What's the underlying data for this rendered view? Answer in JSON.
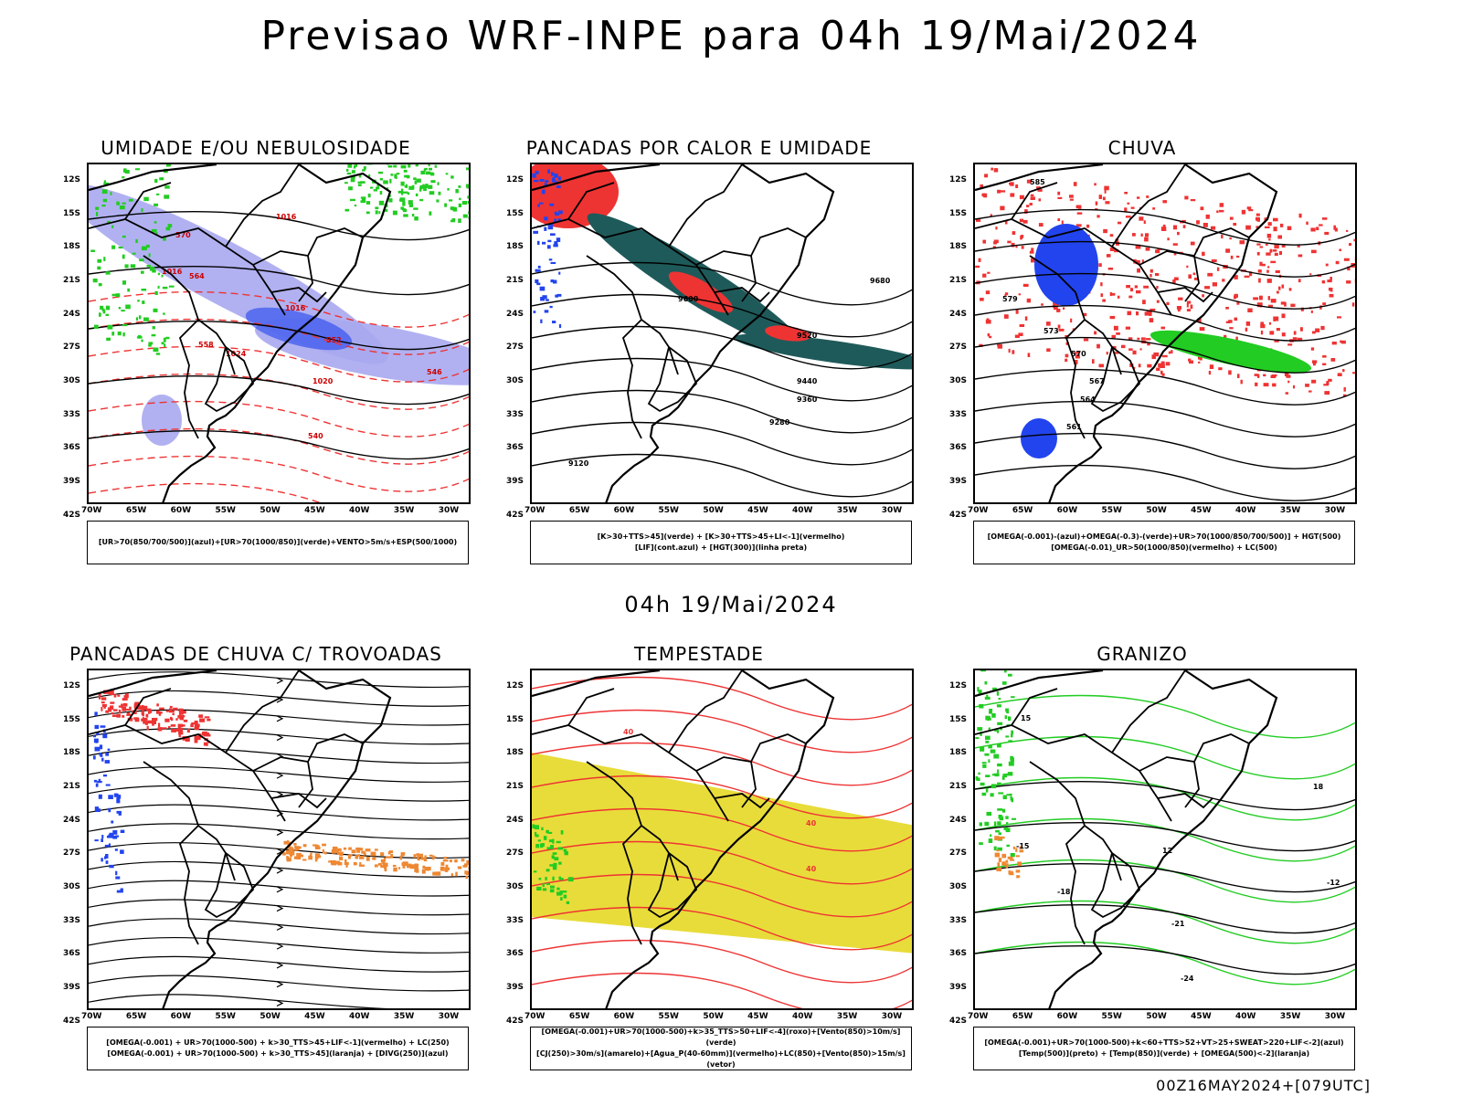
{
  "title": "Previsao WRF-INPE  para 04h 19/Mai/2024",
  "mid_title": "04h 19/Mai/2024",
  "footer": "00Z16MAY2024+[079UTC]",
  "lat_labels": [
    "12S",
    "15S",
    "18S",
    "21S",
    "24S",
    "27S",
    "30S",
    "33S",
    "36S",
    "39S",
    "42S"
  ],
  "lon_labels": [
    "70W",
    "65W",
    "60W",
    "55W",
    "50W",
    "45W",
    "40W",
    "35W",
    "30W"
  ],
  "colors": {
    "green": "#22cc22",
    "red": "#ee3333",
    "blue": "#2244ee",
    "lavender": "#a8a8f0",
    "teal": "#1f5a5a",
    "yellow": "#e8dc3a",
    "orange": "#ee8833"
  },
  "panels": [
    {
      "title": "UMIDADE E/OU NEBULOSIDADE",
      "legend": [
        "[UR>70(850/700/500)](azul)+[UR>70(1000/850)](verde)+VENTO>5m/s+ESP(500/1000)"
      ],
      "contour_labels": [
        "1016",
        "1016",
        "1016",
        "1020",
        "1024",
        "570",
        "564",
        "558",
        "552",
        "546",
        "540"
      ]
    },
    {
      "title": "PANCADAS POR CALOR E UMIDADE",
      "legend": [
        "[K>30+TTS>45](verde) + [K>30+TTS>45+LI<-1](vermelho)",
        "[LIF](cont.azul) + [HGT(300)](linha preta)"
      ],
      "contour_labels": [
        "9680",
        "9600",
        "9520",
        "9440",
        "9360",
        "9280",
        "9120"
      ]
    },
    {
      "title": "CHUVA",
      "legend": [
        "[OMEGA(-0.001)-(azul)+OMEGA(-0.3)-(verde)+UR>70(1000/850/700/500)] + HGT(500)",
        "[OMEGA(-0.01)_UR>50(1000/850)(vermelho) + LC(500)"
      ],
      "contour_labels": [
        "585",
        "579",
        "573",
        "570",
        "567",
        "564",
        "561"
      ]
    },
    {
      "title": "PANCADAS DE CHUVA C/ TROVOADAS",
      "legend": [
        "[OMEGA(-0.001) + UR>70(1000-500) + k>30_TTS>45+LIF<-1](vermelho) + LC(250)",
        "[OMEGA(-0.001) + UR>70(1000-500) + k>30_TTS>45](laranja) + [DIVG(250)](azul)"
      ],
      "contour_labels": []
    },
    {
      "title": "TEMPESTADE",
      "legend": [
        "[OMEGA(-0.001)+UR>70(1000-500)+k>35_TTS>50+LIF<-4](roxo)+[Vento(850)>10m/s](verde)",
        "[CJ(250)>30m/s](amarelo)+[Agua_P(40-60mm)](vermelho)+LC(850)+[Vento(850)>15m/s](vetor)"
      ],
      "contour_labels": [
        "40",
        "40",
        "40"
      ]
    },
    {
      "title": "GRANIZO",
      "legend": [
        "[OMEGA(-0.001)+UR>70(1000-500)+k<60+TTS>52+VT>25+SWEAT>220+LIF<-2](azul)",
        "[Temp(500)](preto) + [Temp(850)](verde) + [OMEGA(500)<-2](laranja)"
      ],
      "contour_labels": [
        "-15",
        "-18",
        "-12",
        "-21",
        "-24",
        "15",
        "12",
        "18"
      ]
    }
  ]
}
